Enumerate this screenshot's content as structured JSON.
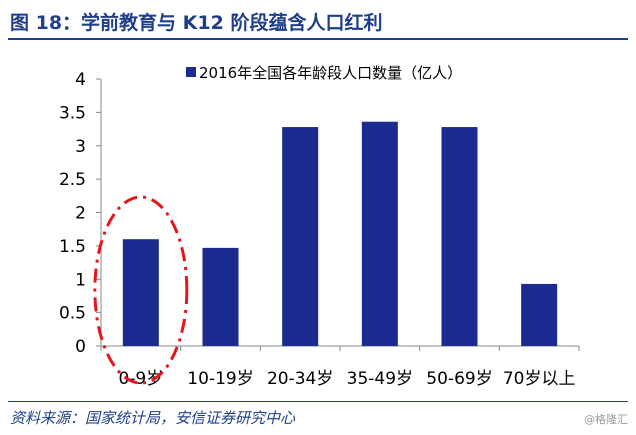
{
  "header": {
    "title": "图 18：学前教育与 K12 阶段蕴含人口红利"
  },
  "footer": {
    "source": "资料来源：国家统计局，安信证券研究中心",
    "watermark": "@格隆汇"
  },
  "colors": {
    "bar": "#1b2b8f",
    "accent": "#1f3f8a",
    "highlight": "#e8141c"
  },
  "chart_data": {
    "type": "bar",
    "title": "",
    "xlabel": "",
    "ylabel": "",
    "categories": [
      "0-9岁",
      "10-19岁",
      "20-34岁",
      "35-49岁",
      "50-69岁",
      "70岁以上"
    ],
    "series": [
      {
        "name": "2016年全国各年龄段人口数量（亿人）",
        "values": [
          1.6,
          1.47,
          3.28,
          3.36,
          3.28,
          0.93
        ]
      }
    ],
    "ylim": [
      0,
      4
    ],
    "yticks": [
      "0",
      "0.5",
      "1",
      "1.5",
      "2",
      "2.5",
      "3",
      "3.5",
      "4"
    ],
    "grid": false,
    "legend_position": "top",
    "annotation": "red dash-dot ellipse highlighting the 0-9岁 bar"
  }
}
